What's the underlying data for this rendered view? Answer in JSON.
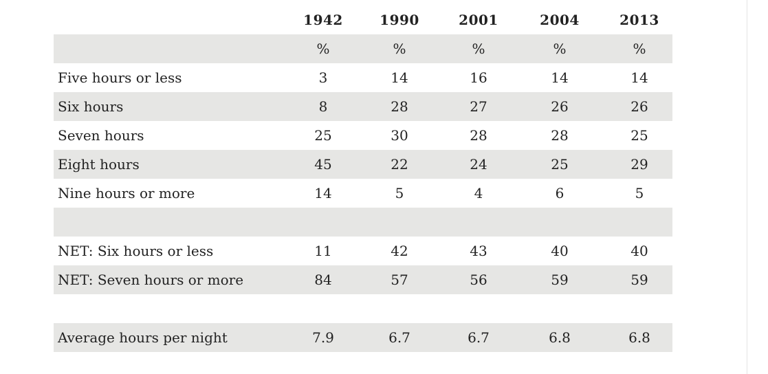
{
  "chart_data": {
    "type": "table",
    "columns": [
      "1942",
      "1990",
      "2001",
      "2004",
      "2013"
    ],
    "unit_row": [
      "%",
      "%",
      "%",
      "%",
      "%"
    ],
    "rows": [
      {
        "label": "Five hours or less",
        "values": [
          "3",
          "14",
          "16",
          "14",
          "14"
        ]
      },
      {
        "label": "Six hours",
        "values": [
          "8",
          "28",
          "27",
          "26",
          "26"
        ]
      },
      {
        "label": "Seven hours",
        "values": [
          "25",
          "30",
          "28",
          "28",
          "25"
        ]
      },
      {
        "label": "Eight hours",
        "values": [
          "45",
          "22",
          "24",
          "25",
          "29"
        ]
      },
      {
        "label": "Nine hours or more",
        "values": [
          "14",
          "5",
          "4",
          "6",
          "5"
        ]
      },
      {
        "label": "NET: Six hours or less",
        "values": [
          "11",
          "42",
          "43",
          "40",
          "40"
        ]
      },
      {
        "label": "NET: Seven hours or more",
        "values": [
          "84",
          "57",
          "56",
          "59",
          "59"
        ]
      },
      {
        "label": "Average hours per night",
        "values": [
          "7.9",
          "6.7",
          "6.7",
          "6.8",
          "6.8"
        ]
      }
    ]
  }
}
